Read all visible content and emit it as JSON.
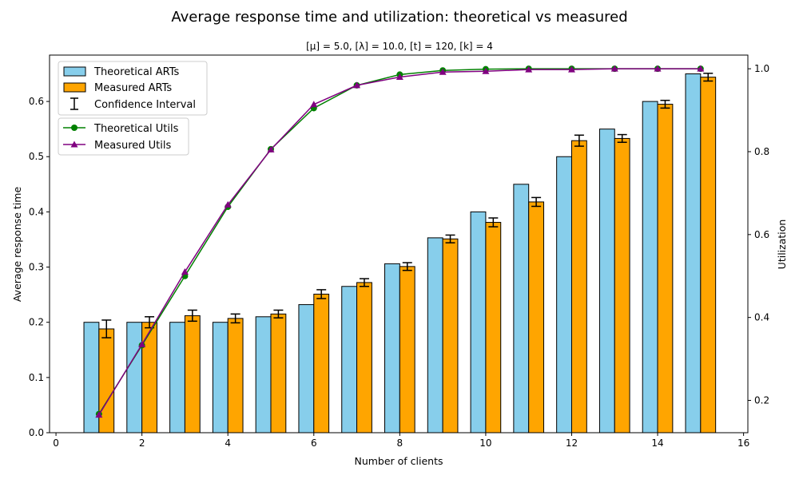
{
  "chart_data": {
    "type": "bar",
    "title": "Average response time and utilization: theoretical vs measured",
    "subtitle": "[μ] = 5.0, [λ] = 10.0, [t] = 120, [k] = 4",
    "xlabel": "Number of clients",
    "ylabel": "Average response time",
    "ylabel_right": "Utilization",
    "xlim": [
      -0.15,
      16.1
    ],
    "ylim": [
      0,
      0.684
    ],
    "ylim_right": [
      0.122,
      1.033
    ],
    "x_ticks": [
      "0",
      "2",
      "4",
      "6",
      "8",
      "10",
      "12",
      "14",
      "16"
    ],
    "y_ticks": [
      "0.0",
      "0.1",
      "0.2",
      "0.3",
      "0.4",
      "0.5",
      "0.6"
    ],
    "y_ticks_right": [
      "0.2",
      "0.4",
      "0.6",
      "0.8",
      "1.0"
    ],
    "x": [
      1,
      2,
      3,
      4,
      5,
      6,
      7,
      8,
      9,
      10,
      11,
      12,
      13,
      14,
      15
    ],
    "bar_series": [
      {
        "name": "Theoretical ARTs",
        "color": "#87ceeb",
        "values": [
          0.2,
          0.2,
          0.2,
          0.2,
          0.21,
          0.232,
          0.265,
          0.306,
          0.353,
          0.4,
          0.45,
          0.5,
          0.55,
          0.6,
          0.65
        ]
      },
      {
        "name": "Measured ARTs",
        "color": "#ffa500",
        "values": [
          0.188,
          0.2,
          0.212,
          0.207,
          0.215,
          0.251,
          0.272,
          0.301,
          0.351,
          0.381,
          0.418,
          0.529,
          0.533,
          0.595,
          0.644
        ],
        "error": [
          0.016,
          0.01,
          0.01,
          0.008,
          0.007,
          0.008,
          0.007,
          0.007,
          0.007,
          0.008,
          0.008,
          0.01,
          0.007,
          0.007,
          0.007
        ]
      }
    ],
    "error_legend": "Confidence Interval",
    "line_series": [
      {
        "name": "Theoretical Utils",
        "color": "#008000",
        "marker": "circle",
        "values": [
          0.167,
          0.333,
          0.5,
          0.667,
          0.806,
          0.905,
          0.96,
          0.986,
          0.996,
          0.999,
          1.0,
          1.0,
          1.0,
          1.0,
          1.0
        ]
      },
      {
        "name": "Measured Utils",
        "color": "#800080",
        "marker": "triangle",
        "values": [
          0.165,
          0.335,
          0.51,
          0.672,
          0.805,
          0.914,
          0.96,
          0.98,
          0.992,
          0.994,
          0.998,
          0.998,
          1.0,
          1.0,
          1.0
        ]
      }
    ],
    "grid": false,
    "legend_placement": "top-left"
  }
}
